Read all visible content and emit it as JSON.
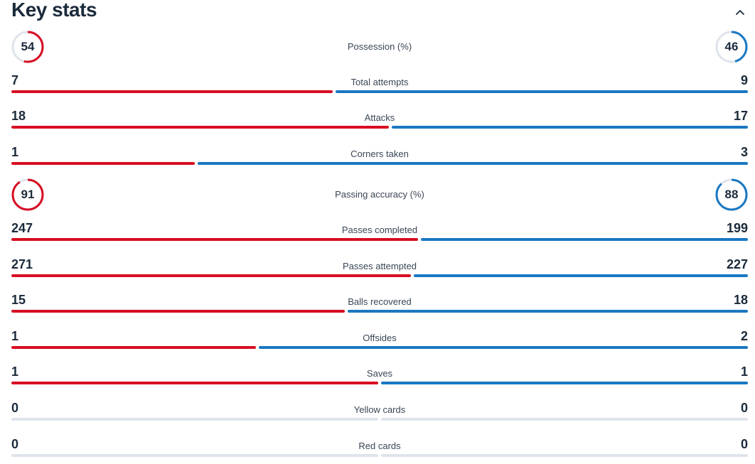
{
  "header": {
    "title": "Key stats",
    "collapse_icon": "chevron-up-icon"
  },
  "colors": {
    "home": "#d70e23",
    "away": "#1a78c2",
    "neutral": "#dfe4ec",
    "ring_track": "#dfe4ec"
  },
  "percent_stats": [
    {
      "label": "Possession (%)",
      "home": "54",
      "away": "46"
    },
    {
      "label": "Passing accuracy (%)",
      "home": "91",
      "away": "88"
    }
  ],
  "stats": [
    {
      "label": "Total attempts",
      "home": "7",
      "away": "9"
    },
    {
      "label": "Attacks",
      "home": "18",
      "away": "17"
    },
    {
      "label": "Corners taken",
      "home": "1",
      "away": "3"
    },
    {
      "label": "Passes completed",
      "home": "247",
      "away": "199"
    },
    {
      "label": "Passes attempted",
      "home": "271",
      "away": "227"
    },
    {
      "label": "Balls recovered",
      "home": "15",
      "away": "18"
    },
    {
      "label": "Offsides",
      "home": "1",
      "away": "2"
    },
    {
      "label": "Saves",
      "home": "1",
      "away": "1"
    },
    {
      "label": "Yellow cards",
      "home": "0",
      "away": "0"
    },
    {
      "label": "Red cards",
      "home": "0",
      "away": "0"
    }
  ]
}
